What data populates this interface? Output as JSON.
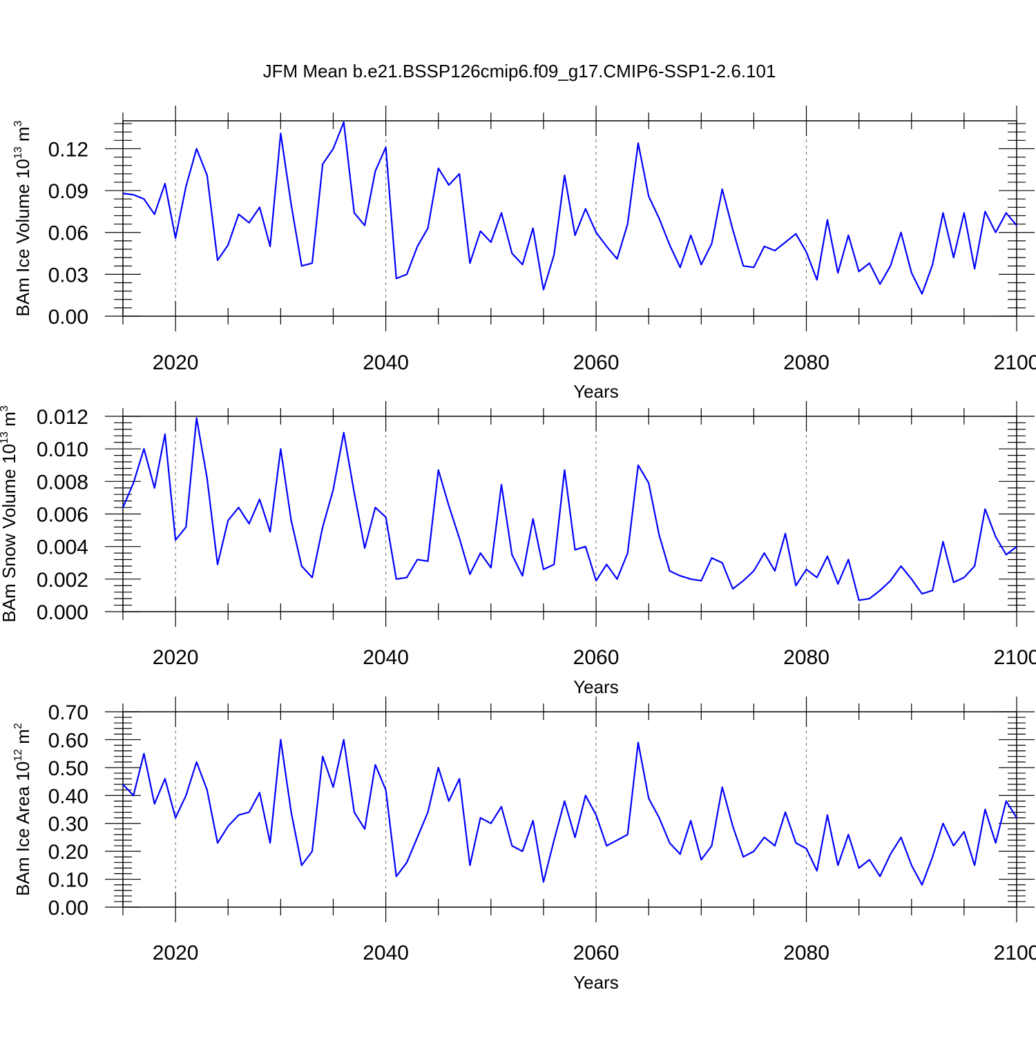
{
  "title": "JFM Mean b.e21.BSSP126cmip6.f09_g17.CMIP6-SSP1-2.6.101",
  "colors": {
    "line": "#0000ff",
    "axis": "#000000",
    "gridline": "#666666"
  },
  "chart_data": [
    {
      "type": "line",
      "ylabel": {
        "main": "BAm Ice Volume 10",
        "exp": "13",
        "unit": " m",
        "unit_exp": "3"
      },
      "xlabel": "Years",
      "xlim": [
        2015,
        2100
      ],
      "ylim": [
        0,
        0.14
      ],
      "yticks": [
        0,
        0.03,
        0.06,
        0.09,
        0.12
      ],
      "ytick_labels": [
        "0.00",
        "0.03",
        "0.06",
        "0.09",
        "0.12"
      ],
      "xticks": [
        2020,
        2040,
        2060,
        2080,
        2100
      ],
      "xtick_labels": [
        "2020",
        "2040",
        "2060",
        "2080",
        "2100"
      ],
      "x_start": 2015,
      "values": [
        0.088,
        0.087,
        0.084,
        0.073,
        0.095,
        0.056,
        0.093,
        0.12,
        0.101,
        0.04,
        0.051,
        0.073,
        0.067,
        0.078,
        0.05,
        0.131,
        0.08,
        0.036,
        0.038,
        0.109,
        0.12,
        0.139,
        0.074,
        0.065,
        0.104,
        0.121,
        0.027,
        0.03,
        0.05,
        0.063,
        0.106,
        0.094,
        0.102,
        0.038,
        0.061,
        0.053,
        0.074,
        0.045,
        0.037,
        0.063,
        0.019,
        0.044,
        0.101,
        0.058,
        0.077,
        0.06,
        0.05,
        0.041,
        0.066,
        0.124,
        0.086,
        0.07,
        0.051,
        0.035,
        0.058,
        0.037,
        0.052,
        0.091,
        0.062,
        0.036,
        0.035,
        0.05,
        0.047,
        0.053,
        0.059,
        0.046,
        0.026,
        0.069,
        0.031,
        0.058,
        0.032,
        0.038,
        0.023,
        0.036,
        0.06,
        0.031,
        0.016,
        0.037,
        0.074,
        0.042,
        0.074,
        0.034,
        0.075,
        0.06,
        0.074,
        0.065
      ]
    },
    {
      "type": "line",
      "ylabel": {
        "main": "BAm Snow Volume 10",
        "exp": "13",
        "unit": " m",
        "unit_exp": "3"
      },
      "xlabel": "Years",
      "xlim": [
        2015,
        2100
      ],
      "ylim": [
        0,
        0.012
      ],
      "yticks": [
        0,
        0.002,
        0.004,
        0.006,
        0.008,
        0.01,
        0.012
      ],
      "ytick_labels": [
        "0.000",
        "0.002",
        "0.004",
        "0.006",
        "0.008",
        "0.010",
        "0.012"
      ],
      "xticks": [
        2020,
        2040,
        2060,
        2080,
        2100
      ],
      "xtick_labels": [
        "2020",
        "2040",
        "2060",
        "2080",
        "2100"
      ],
      "x_start": 2015,
      "values": [
        0.0064,
        0.0079,
        0.01,
        0.0076,
        0.0109,
        0.0044,
        0.0052,
        0.0119,
        0.0082,
        0.0029,
        0.0056,
        0.0064,
        0.0054,
        0.0069,
        0.0049,
        0.01,
        0.0056,
        0.0028,
        0.0021,
        0.0052,
        0.0075,
        0.011,
        0.0073,
        0.0039,
        0.0064,
        0.0058,
        0.002,
        0.0021,
        0.0032,
        0.0031,
        0.0087,
        0.0065,
        0.0045,
        0.0023,
        0.0036,
        0.0027,
        0.0078,
        0.0035,
        0.0022,
        0.0057,
        0.0026,
        0.0029,
        0.0087,
        0.0038,
        0.004,
        0.0019,
        0.0029,
        0.002,
        0.0036,
        0.009,
        0.0079,
        0.0047,
        0.0025,
        0.0022,
        0.002,
        0.0019,
        0.0033,
        0.003,
        0.0014,
        0.0019,
        0.0025,
        0.0036,
        0.0025,
        0.0048,
        0.0016,
        0.0026,
        0.0021,
        0.0034,
        0.0017,
        0.0032,
        0.0007,
        0.0008,
        0.0013,
        0.0019,
        0.0028,
        0.002,
        0.0011,
        0.0013,
        0.0043,
        0.0018,
        0.0021,
        0.0028,
        0.0063,
        0.0046,
        0.0035,
        0.004
      ]
    },
    {
      "type": "line",
      "ylabel": {
        "main": "BAm Ice Area 10",
        "exp": "12",
        "unit": " m",
        "unit_exp": "2"
      },
      "xlabel": "Years",
      "xlim": [
        2015,
        2100
      ],
      "ylim": [
        0,
        0.7
      ],
      "yticks": [
        0,
        0.1,
        0.2,
        0.3,
        0.4,
        0.5,
        0.6,
        0.7
      ],
      "ytick_labels": [
        "0.00",
        "0.10",
        "0.20",
        "0.30",
        "0.40",
        "0.50",
        "0.60",
        "0.70"
      ],
      "xticks": [
        2020,
        2040,
        2060,
        2080,
        2100
      ],
      "xtick_labels": [
        "2020",
        "2040",
        "2060",
        "2080",
        "2100"
      ],
      "x_start": 2015,
      "values": [
        0.44,
        0.4,
        0.55,
        0.37,
        0.46,
        0.32,
        0.4,
        0.52,
        0.42,
        0.23,
        0.29,
        0.33,
        0.34,
        0.41,
        0.23,
        0.6,
        0.34,
        0.15,
        0.2,
        0.54,
        0.43,
        0.6,
        0.34,
        0.28,
        0.51,
        0.42,
        0.11,
        0.16,
        0.25,
        0.34,
        0.5,
        0.38,
        0.46,
        0.15,
        0.32,
        0.3,
        0.36,
        0.22,
        0.2,
        0.31,
        0.09,
        0.24,
        0.38,
        0.25,
        0.4,
        0.33,
        0.22,
        0.24,
        0.26,
        0.59,
        0.39,
        0.32,
        0.23,
        0.19,
        0.31,
        0.17,
        0.22,
        0.43,
        0.29,
        0.18,
        0.2,
        0.25,
        0.22,
        0.34,
        0.23,
        0.21,
        0.13,
        0.33,
        0.15,
        0.26,
        0.14,
        0.17,
        0.11,
        0.19,
        0.25,
        0.15,
        0.08,
        0.18,
        0.3,
        0.22,
        0.27,
        0.15,
        0.35,
        0.23,
        0.38,
        0.32
      ]
    }
  ]
}
